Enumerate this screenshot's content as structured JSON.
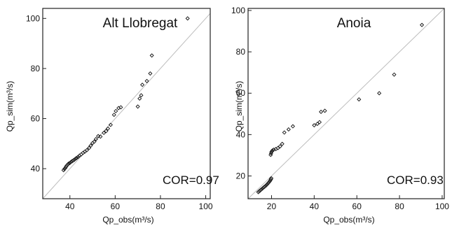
{
  "chart_data": [
    {
      "type": "scatter",
      "title": "Alt Llobregat",
      "annotation": "COR=0.97",
      "xlabel": "Qp_obs(m³/s)",
      "ylabel": "Qp_sim(m³/s)",
      "xlim": [
        28,
        102
      ],
      "ylim": [
        28,
        104
      ],
      "xticks": [
        40,
        60,
        80,
        100
      ],
      "yticks": [
        40,
        60,
        80,
        100
      ],
      "xtick_labels": [
        "40",
        "60",
        "80",
        "100"
      ],
      "ytick_labels": [
        "40",
        "60",
        "80",
        "100"
      ],
      "reference_line": "1:1",
      "marker": "open-diamond",
      "points": [
        [
          37.2,
          39.4
        ],
        [
          37.6,
          39.9
        ],
        [
          38.0,
          40.3
        ],
        [
          38.3,
          40.8
        ],
        [
          38.6,
          41.2
        ],
        [
          39.0,
          41.6
        ],
        [
          39.4,
          42.0
        ],
        [
          40.0,
          42.3
        ],
        [
          40.5,
          42.7
        ],
        [
          41.0,
          43.0
        ],
        [
          41.5,
          43.3
        ],
        [
          42.0,
          43.6
        ],
        [
          42.5,
          44.0
        ],
        [
          43.0,
          44.3
        ],
        [
          43.6,
          44.7
        ],
        [
          44.2,
          45.2
        ],
        [
          45.0,
          45.7
        ],
        [
          45.8,
          46.3
        ],
        [
          46.6,
          46.8
        ],
        [
          47.5,
          47.4
        ],
        [
          48.5,
          48.3
        ],
        [
          49.2,
          49.2
        ],
        [
          50.0,
          50.2
        ],
        [
          50.8,
          50.8
        ],
        [
          51.5,
          51.8
        ],
        [
          52.5,
          53.0
        ],
        [
          53.5,
          52.8
        ],
        [
          55.0,
          54.3
        ],
        [
          56.0,
          55.0
        ],
        [
          56.8,
          56.0
        ],
        [
          58.0,
          57.5
        ],
        [
          59.5,
          61.5
        ],
        [
          60.3,
          63.0
        ],
        [
          61.5,
          64.2
        ],
        [
          62.5,
          64.5
        ],
        [
          70.0,
          64.8
        ],
        [
          70.8,
          68.0
        ],
        [
          71.5,
          69.3
        ],
        [
          72.0,
          73.5
        ],
        [
          74.0,
          75.0
        ],
        [
          75.5,
          78.0
        ],
        [
          76.2,
          85.2
        ],
        [
          92.0,
          100.0
        ]
      ]
    },
    {
      "type": "scatter",
      "title": "Anoia",
      "annotation": "COR=0.93",
      "xlabel": "Qp_obs(m³/s)",
      "ylabel": "Qp_sim(m³/s)",
      "xlim": [
        9,
        101
      ],
      "ylim": [
        9,
        101
      ],
      "xticks": [
        20,
        40,
        60,
        80,
        100
      ],
      "yticks": [
        20,
        40,
        60,
        80,
        100
      ],
      "xtick_labels": [
        "20",
        "40",
        "60",
        "80",
        "100"
      ],
      "ytick_labels": [
        "20",
        "40",
        "60",
        "80",
        "100"
      ],
      "reference_line": "1:1",
      "marker": "open-diamond",
      "points": [
        [
          13.8,
          12.2
        ],
        [
          14.2,
          12.6
        ],
        [
          14.6,
          12.9
        ],
        [
          15.0,
          13.3
        ],
        [
          15.5,
          13.7
        ],
        [
          16.0,
          14.2
        ],
        [
          16.5,
          14.6
        ],
        [
          17.0,
          15.0
        ],
        [
          17.5,
          15.5
        ],
        [
          18.0,
          16.0
        ],
        [
          18.5,
          16.6
        ],
        [
          19.0,
          17.2
        ],
        [
          19.4,
          17.8
        ],
        [
          19.7,
          18.4
        ],
        [
          19.9,
          18.9
        ],
        [
          19.6,
          30.2
        ],
        [
          19.8,
          31.0
        ],
        [
          20.0,
          31.7
        ],
        [
          20.4,
          32.3
        ],
        [
          21.0,
          32.7
        ],
        [
          22.0,
          33.0
        ],
        [
          23.0,
          33.5
        ],
        [
          24.0,
          34.3
        ],
        [
          25.0,
          35.5
        ],
        [
          26.0,
          41.0
        ],
        [
          28.0,
          42.5
        ],
        [
          30.0,
          44.0
        ],
        [
          40.0,
          44.5
        ],
        [
          41.5,
          45.2
        ],
        [
          42.5,
          46.0
        ],
        [
          43.2,
          51.0
        ],
        [
          45.0,
          51.5
        ],
        [
          61.0,
          57.0
        ],
        [
          70.5,
          60.0
        ],
        [
          77.5,
          69.0
        ],
        [
          90.5,
          93.0
        ]
      ]
    }
  ]
}
